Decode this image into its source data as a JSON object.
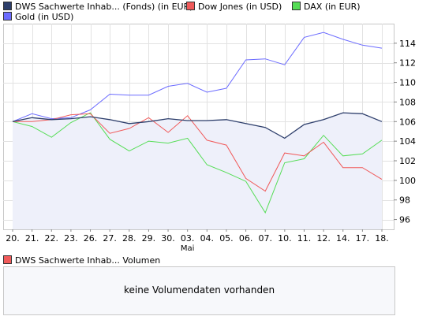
{
  "legend": [
    {
      "label": "DWS Sachwerte Inhab... (Fonds) (in EUR)",
      "color": "#2d3e6b"
    },
    {
      "label": "Dow Jones (in USD)",
      "color": "#f05a5a"
    },
    {
      "label": "DAX (in EUR)",
      "color": "#55dd55"
    },
    {
      "label": "Gold (in USD)",
      "color": "#6b6bff"
    }
  ],
  "volume": {
    "legend_label": "DWS Sachwerte Inhab... Volumen",
    "legend_color": "#f05a5a",
    "message": "keine Volumendaten vorhanden"
  },
  "chart_data": {
    "type": "line",
    "x": [
      "20.",
      "21.",
      "22.",
      "23.",
      "26.",
      "27.",
      "28.",
      "29.",
      "30.",
      "03.",
      "04.",
      "05.",
      "06.",
      "07.",
      "10.",
      "11.",
      "12.",
      "14.",
      "17.",
      "18."
    ],
    "x_month_label": {
      "index": 9,
      "text": "Mai"
    },
    "yticks": [
      96,
      98,
      100,
      102,
      104,
      106,
      108,
      110,
      112,
      114
    ],
    "ylim": [
      95,
      116
    ],
    "grid": true,
    "axis_side": "right",
    "series": [
      {
        "name": "DWS Sachwerte Inhab... (Fonds) (in EUR)",
        "color": "#2d3e6b",
        "fill": "#eef0fa",
        "values": [
          106.0,
          106.4,
          106.2,
          106.3,
          106.5,
          106.2,
          105.8,
          106.0,
          106.3,
          106.1,
          106.1,
          106.2,
          105.8,
          105.4,
          104.3,
          105.7,
          106.2,
          106.9,
          106.8,
          106.0
        ]
      },
      {
        "name": "Dow Jones (in USD)",
        "color": "#f05a5a",
        "values": [
          106.0,
          106.0,
          106.2,
          106.7,
          106.8,
          104.8,
          105.3,
          106.4,
          104.9,
          106.6,
          104.1,
          103.6,
          100.2,
          98.9,
          102.8,
          102.5,
          103.9,
          101.3,
          101.3,
          100.1
        ]
      },
      {
        "name": "DAX (in EUR)",
        "color": "#55dd55",
        "values": [
          106.0,
          105.5,
          104.4,
          105.9,
          106.9,
          104.2,
          103.0,
          104.0,
          103.8,
          104.3,
          101.6,
          100.8,
          99.9,
          96.7,
          101.8,
          102.2,
          104.6,
          102.5,
          102.7,
          104.1
        ]
      },
      {
        "name": "Gold (in USD)",
        "color": "#6b6bff",
        "values": [
          106.0,
          106.8,
          106.3,
          106.4,
          107.2,
          108.8,
          108.7,
          108.7,
          109.6,
          109.9,
          109.0,
          109.4,
          112.3,
          112.4,
          111.8,
          114.6,
          115.1,
          114.4,
          113.8,
          113.5
        ]
      }
    ]
  }
}
